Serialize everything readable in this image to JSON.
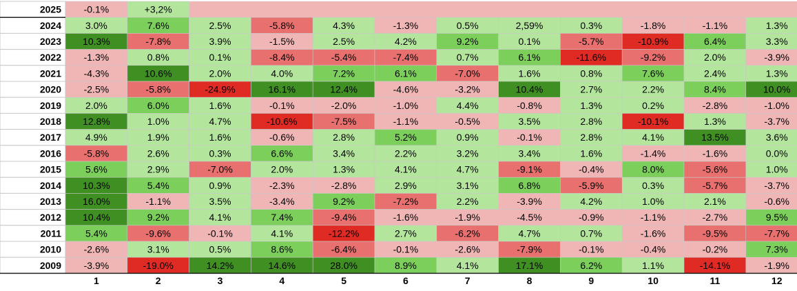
{
  "chart_data": {
    "type": "heatmap",
    "title": "",
    "xlabel": "",
    "ylabel": "",
    "columns": [
      "1",
      "2",
      "3",
      "4",
      "5",
      "6",
      "7",
      "8",
      "9",
      "10",
      "11",
      "12"
    ],
    "colors": {
      "strong_green": "#3f8f22",
      "medium_green": "#7ccf5b",
      "light_green": "#b4e59d",
      "light_red": "#f0b6b6",
      "medium_red": "#e8706e",
      "strong_red": "#e02a24",
      "grid": "#c8c8c8",
      "year_bg": "#ffffff"
    },
    "rows": [
      {
        "year": "2025",
        "labels": [
          "-0.1%",
          "+3,2%"
        ],
        "values": [
          -0.1,
          3.2
        ]
      },
      {
        "year": "2024",
        "labels": [
          "3.0%",
          "7.6%",
          "2.5%",
          "-5.8%",
          "4.3%",
          "-1.3%",
          "0.5%",
          "2,59%",
          "0.3%",
          "-1.8%",
          "-1.1%",
          "1.3%"
        ],
        "values": [
          3.0,
          7.6,
          2.5,
          -5.8,
          4.3,
          -1.3,
          0.5,
          2.59,
          0.3,
          -1.8,
          -1.1,
          1.3
        ]
      },
      {
        "year": "2023",
        "labels": [
          "10.3%",
          "-7.8%",
          "3.9%",
          "-1.5%",
          "2.5%",
          "4.2%",
          "9.2%",
          "0.1%",
          "-5.7%",
          "-10.9%",
          "6.4%",
          "3.3%"
        ],
        "values": [
          10.3,
          -7.8,
          3.9,
          -1.5,
          2.5,
          4.2,
          9.2,
          0.1,
          -5.7,
          -10.9,
          6.4,
          3.3
        ]
      },
      {
        "year": "2022",
        "labels": [
          "-1.3%",
          "0.8%",
          "0.1%",
          "-8.4%",
          "-5.4%",
          "-7.4%",
          "0.7%",
          "6.1%",
          "-11.6%",
          "-9.2%",
          "2.0%",
          "-3.9%"
        ],
        "values": [
          -1.3,
          0.8,
          0.1,
          -8.4,
          -5.4,
          -7.4,
          0.7,
          6.1,
          -11.6,
          -9.2,
          2.0,
          -3.9
        ]
      },
      {
        "year": "2021",
        "labels": [
          "-4.3%",
          "10.6%",
          "2.0%",
          "4.0%",
          "7.2%",
          "6.1%",
          "-7.0%",
          "1.6%",
          "0.8%",
          "7.6%",
          "2.4%",
          "1.3%"
        ],
        "values": [
          -4.3,
          10.6,
          2.0,
          4.0,
          7.2,
          6.1,
          -7.0,
          1.6,
          0.8,
          7.6,
          2.4,
          1.3
        ]
      },
      {
        "year": "2020",
        "labels": [
          "-2.5%",
          "-5.8%",
          "-24.9%",
          "16.1%",
          "12.4%",
          "-4.6%",
          "-3.2%",
          "10.4%",
          "2.7%",
          "2.2%",
          "8.4%",
          "10.0%"
        ],
        "values": [
          -2.5,
          -5.8,
          -24.9,
          16.1,
          12.4,
          -4.6,
          -3.2,
          10.4,
          2.7,
          2.2,
          8.4,
          10.0
        ]
      },
      {
        "year": "2019",
        "labels": [
          "2.0%",
          "6.0%",
          "1.6%",
          "-0.1%",
          "-2.0%",
          "-1.0%",
          "4.4%",
          "-0.8%",
          "1.3%",
          "0.2%",
          "-2.8%",
          "-1.0%"
        ],
        "values": [
          2.0,
          6.0,
          1.6,
          -0.1,
          -2.0,
          -1.0,
          4.4,
          -0.8,
          1.3,
          0.2,
          -2.8,
          -1.0
        ]
      },
      {
        "year": "2018",
        "labels": [
          "12.8%",
          "1.0%",
          "4.7%",
          "-10.6%",
          "-7.5%",
          "-1.1%",
          "-0.5%",
          "3.5%",
          "2.8%",
          "-10.1%",
          "1.3%",
          "-3.7%"
        ],
        "values": [
          12.8,
          1.0,
          4.7,
          -10.6,
          -7.5,
          -1.1,
          -0.5,
          3.5,
          2.8,
          -10.1,
          1.3,
          -3.7
        ]
      },
      {
        "year": "2017",
        "labels": [
          "4.9%",
          "1.9%",
          "1.6%",
          "-0.6%",
          "2.8%",
          "5.2%",
          "0.9%",
          "-0.1%",
          "2.8%",
          "4.1%",
          "13.5%",
          "3.6%"
        ],
        "values": [
          4.9,
          1.9,
          1.6,
          -0.6,
          2.8,
          5.2,
          0.9,
          -0.1,
          2.8,
          4.1,
          13.5,
          3.6
        ]
      },
      {
        "year": "2016",
        "labels": [
          "-5.8%",
          "2.6%",
          "0.3%",
          "6.6%",
          "3.4%",
          "2.2%",
          "3.2%",
          "3.4%",
          "1.6%",
          "-1.4%",
          "-1.6%",
          "0.0%"
        ],
        "values": [
          -5.8,
          2.6,
          0.3,
          6.6,
          3.4,
          2.2,
          3.2,
          3.4,
          1.6,
          -1.4,
          -1.6,
          0.0
        ]
      },
      {
        "year": "2015",
        "labels": [
          "5.6%",
          "2.9%",
          "-7.0%",
          "2.0%",
          "1.3%",
          "4.1%",
          "4.7%",
          "-9.1%",
          "-0.4%",
          "8.0%",
          "-5.6%",
          "1.0%"
        ],
        "values": [
          5.6,
          2.9,
          -7.0,
          2.0,
          1.3,
          4.1,
          4.7,
          -9.1,
          -0.4,
          8.0,
          -5.6,
          1.0
        ]
      },
      {
        "year": "2014",
        "labels": [
          "10.3%",
          "5.4%",
          "0.9%",
          "-2.3%",
          "-2.8%",
          "2.9%",
          "3.1%",
          "6.8%",
          "-5.9%",
          "0.3%",
          "-5.7%",
          "-3.7%"
        ],
        "values": [
          10.3,
          5.4,
          0.9,
          -2.3,
          -2.8,
          2.9,
          3.1,
          6.8,
          -5.9,
          0.3,
          -5.7,
          -3.7
        ]
      },
      {
        "year": "2013",
        "labels": [
          "16.0%",
          "-1.1%",
          "3.5%",
          "-3.4%",
          "9.2%",
          "-7.2%",
          "2.2%",
          "-3.9%",
          "4.2%",
          "1.0%",
          "2.1%",
          "-0.6%"
        ],
        "values": [
          16.0,
          -1.1,
          3.5,
          -3.4,
          9.2,
          -7.2,
          2.2,
          -3.9,
          4.2,
          1.0,
          2.1,
          -0.6
        ]
      },
      {
        "year": "2012",
        "labels": [
          "10.4%",
          "9.2%",
          "4.1%",
          "7.4%",
          "-9.4%",
          "-1.6%",
          "-1.9%",
          "-4.5%",
          "-0.9%",
          "-1.1%",
          "-2.7%",
          "9.5%"
        ],
        "values": [
          10.4,
          9.2,
          4.1,
          7.4,
          -9.4,
          -1.6,
          -1.9,
          -4.5,
          -0.9,
          -1.1,
          -2.7,
          9.5
        ]
      },
      {
        "year": "2011",
        "labels": [
          "5.4%",
          "-9.6%",
          "-0.1%",
          "4.1%",
          "-12.2%",
          "2.7%",
          "-6.2%",
          "4.7%",
          "0.7%",
          "-1.6%",
          "-9.5%",
          "-7.7%"
        ],
        "values": [
          5.4,
          -9.6,
          -0.1,
          4.1,
          -12.2,
          2.7,
          -6.2,
          4.7,
          0.7,
          -1.6,
          -9.5,
          -7.7
        ]
      },
      {
        "year": "2010",
        "labels": [
          "-2.6%",
          "3.1%",
          "0.5%",
          "8.6%",
          "-6.4%",
          "-0.1%",
          "-2.6%",
          "-7.9%",
          "-0.1%",
          "-0.4%",
          "-0.2%",
          "7.3%"
        ],
        "values": [
          -2.6,
          3.1,
          0.5,
          8.6,
          -6.4,
          -0.1,
          -2.6,
          -7.9,
          -0.1,
          -0.4,
          -0.2,
          7.3
        ]
      },
      {
        "year": "2009",
        "labels": [
          "-3.9%",
          "-19.0%",
          "14.2%",
          "14.6%",
          "28.0%",
          "8.9%",
          "4.1%",
          "17.1%",
          "6.2%",
          "1.1%",
          "-14.1%",
          "-1.9%"
        ],
        "values": [
          -3.9,
          -19.0,
          14.2,
          14.6,
          28.0,
          8.9,
          4.1,
          17.1,
          6.2,
          1.1,
          -14.1,
          -1.9
        ]
      }
    ]
  }
}
